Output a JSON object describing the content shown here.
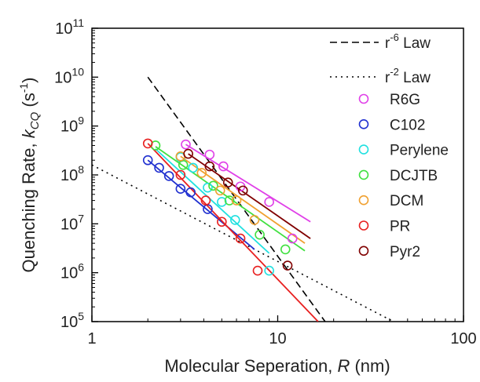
{
  "chart_data": {
    "type": "scatter",
    "title": "",
    "xlabel": "Molecular Seperation, ",
    "xlabel_var": "R",
    "xlabel_unit": " (nm)",
    "ylabel_main": "Quenching Rate, ",
    "ylabel_var": "k",
    "ylabel_sub": "CQ",
    "ylabel_unit": " (s",
    "ylabel_unit_sup": "-1",
    "ylabel_unit_close": ")",
    "xscale": "log",
    "yscale": "log",
    "xlim": [
      1,
      100
    ],
    "ylim": [
      100000,
      100000000000
    ],
    "x_ticks": [
      {
        "value": 1,
        "label": "1"
      },
      {
        "value": 10,
        "label": "10"
      },
      {
        "value": 100,
        "label": "100"
      }
    ],
    "y_ticks": [
      {
        "value": 100000,
        "base": "10",
        "exp": "5"
      },
      {
        "value": 1000000,
        "base": "10",
        "exp": "6"
      },
      {
        "value": 10000000,
        "base": "10",
        "exp": "7"
      },
      {
        "value": 100000000,
        "base": "10",
        "exp": "8"
      },
      {
        "value": 1000000000,
        "base": "10",
        "exp": "9"
      },
      {
        "value": 10000000000,
        "base": "10",
        "exp": "10"
      },
      {
        "value": 100000000000,
        "base": "10",
        "exp": "11"
      }
    ],
    "grid": false,
    "legend_position": "top-right",
    "reference_lines": [
      {
        "name_base": "r",
        "name_sup": "-6",
        "name_rest": " Law",
        "style": "dashed",
        "color": "#000000",
        "x": [
          2,
          18
        ],
        "y": [
          10000000000,
          100000
        ]
      },
      {
        "name_base": "r",
        "name_sup": "-2",
        "name_rest": " Law",
        "style": "dotted",
        "color": "#000000",
        "x": [
          1,
          42
        ],
        "y": [
          160000000,
          100000
        ]
      }
    ],
    "series": [
      {
        "name": "R6G",
        "color": "#e040e8",
        "points": [
          [
            3.2,
            420000000
          ],
          [
            4.3,
            260000000
          ],
          [
            5.1,
            150000000
          ],
          [
            6.3,
            58000000
          ],
          [
            9.0,
            28000000
          ],
          [
            12.0,
            5000000
          ]
        ],
        "fit": {
          "x": [
            3.2,
            15
          ],
          "y": [
            420000000,
            11000000
          ]
        }
      },
      {
        "name": "C102",
        "color": "#2030d0",
        "points": [
          [
            2.0,
            200000000
          ],
          [
            2.3,
            140000000
          ],
          [
            2.6,
            95000000
          ],
          [
            3.0,
            52000000
          ],
          [
            3.4,
            44000000
          ],
          [
            4.2,
            20000000
          ]
        ],
        "fit": {
          "x": [
            2.0,
            7.5
          ],
          "y": [
            200000000,
            3000000
          ]
        }
      },
      {
        "name": "Perylene",
        "color": "#20e0e0",
        "points": [
          [
            3.0,
            230000000
          ],
          [
            3.5,
            140000000
          ],
          [
            4.2,
            55000000
          ],
          [
            5.0,
            28000000
          ],
          [
            5.9,
            12000000
          ],
          [
            9.0,
            1100000
          ]
        ],
        "fit": {
          "x": [
            2.2,
            9
          ],
          "y": [
            340000000,
            2500000
          ]
        }
      },
      {
        "name": "DCJTB",
        "color": "#40e040",
        "points": [
          [
            2.2,
            400000000
          ],
          [
            3.1,
            160000000
          ],
          [
            4.5,
            60000000
          ],
          [
            5.5,
            30000000
          ],
          [
            8.0,
            6000000
          ],
          [
            11.0,
            3000000
          ]
        ],
        "fit": {
          "x": [
            2.2,
            14
          ],
          "y": [
            380000000,
            2800000
          ]
        }
      },
      {
        "name": "DCM",
        "color": "#f0a030",
        "points": [
          [
            3.0,
            240000000
          ],
          [
            3.9,
            110000000
          ],
          [
            4.9,
            48000000
          ],
          [
            6.0,
            30000000
          ],
          [
            7.5,
            12000000
          ]
        ],
        "fit": {
          "x": [
            3.0,
            14
          ],
          "y": [
            240000000,
            4000000
          ]
        }
      },
      {
        "name": "PR",
        "color": "#e82020",
        "points": [
          [
            2.0,
            440000000
          ],
          [
            3.0,
            100000000
          ],
          [
            4.1,
            30000000
          ],
          [
            5.0,
            11000000
          ],
          [
            6.3,
            5000000
          ],
          [
            7.8,
            1100000
          ]
        ],
        "fit": {
          "x": [
            2.0,
            16.5
          ],
          "y": [
            440000000,
            100000
          ]
        }
      },
      {
        "name": "Pyr2",
        "color": "#800000",
        "points": [
          [
            3.3,
            270000000
          ],
          [
            4.3,
            150000000
          ],
          [
            5.4,
            70000000
          ],
          [
            6.5,
            48000000
          ],
          [
            11.3,
            1400000
          ]
        ],
        "fit": {
          "x": [
            3.3,
            15
          ],
          "y": [
            270000000,
            5000000
          ]
        }
      }
    ]
  }
}
